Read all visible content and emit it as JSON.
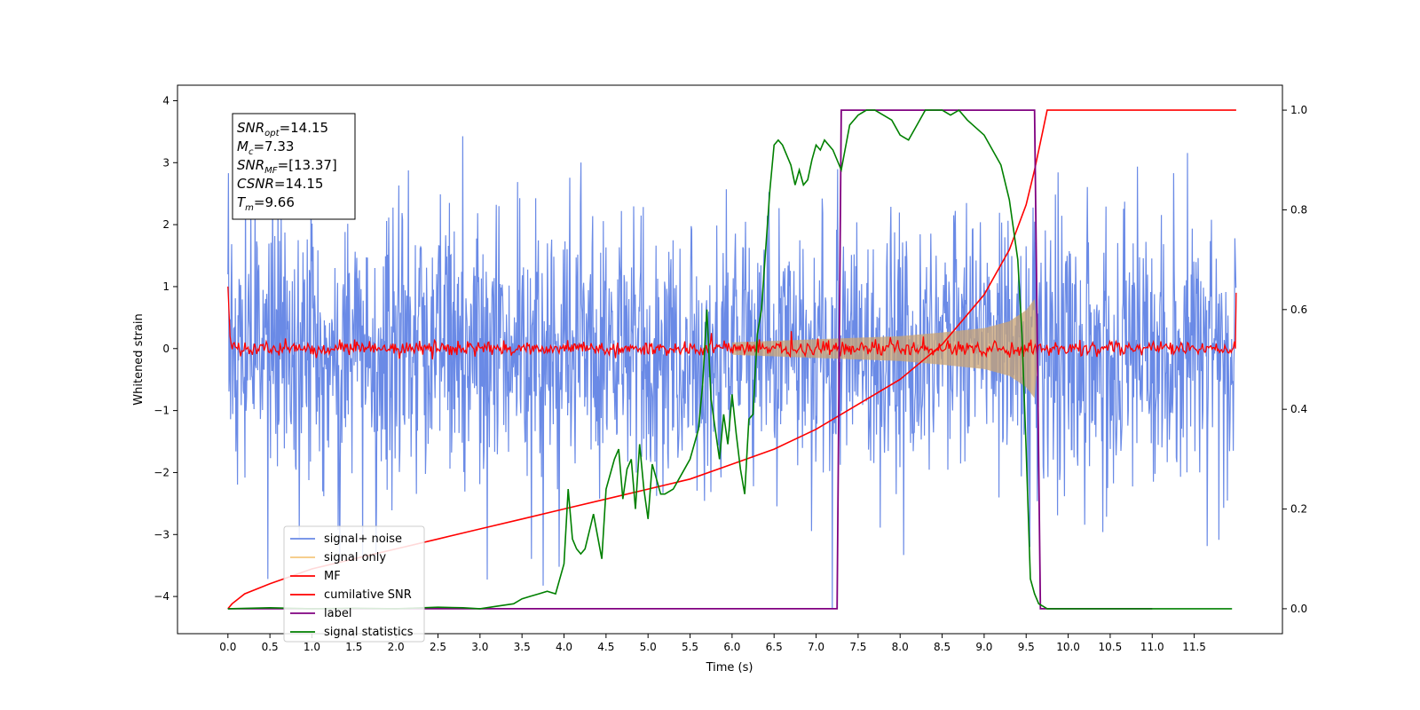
{
  "chart_data": {
    "type": "line",
    "title": "",
    "xlabel": "Time (s)",
    "ylabel": "Whitened strain",
    "y2label": "",
    "xlim": [
      -0.6,
      12.55
    ],
    "ylim": [
      -4.6,
      4.25
    ],
    "y2lim": [
      -0.05,
      1.05
    ],
    "xticks": [
      0.0,
      0.5,
      1.0,
      1.5,
      2.0,
      2.5,
      3.0,
      3.5,
      4.0,
      4.5,
      5.0,
      5.5,
      6.0,
      6.5,
      7.0,
      7.5,
      8.0,
      8.5,
      9.0,
      9.5,
      10.0,
      10.5,
      11.0,
      11.5
    ],
    "yticks": [
      -4,
      -3,
      -2,
      -1,
      0,
      1,
      2,
      3,
      4
    ],
    "y2ticks": [
      0.0,
      0.2,
      0.4,
      0.6,
      0.8,
      1.0
    ],
    "grid": false,
    "legend_position": "lower-left",
    "annotation": [
      {
        "base": "SNR",
        "sub": "opt",
        "rest": "=14.15"
      },
      {
        "base": "M",
        "sub": "c",
        "rest": "=7.33"
      },
      {
        "base": "SNR",
        "sub": "MF",
        "rest": "=[13.37]"
      },
      {
        "base": "CSNR",
        "sub": "",
        "rest": "=14.15"
      },
      {
        "base": "T",
        "sub": "m",
        "rest": "=9.66"
      }
    ],
    "series": [
      {
        "name": "signal+ noise",
        "color": "#6a8ae6",
        "axis": "left",
        "kind": "noise",
        "amplitude": 1.1,
        "t_end": 12.0
      },
      {
        "name": "signal only",
        "color": "#f5c77e",
        "axis": "left",
        "kind": "chirp",
        "envelope": {
          "t": [
            0.0,
            6.0,
            7.0,
            8.0,
            8.5,
            9.0,
            9.3,
            9.5,
            9.6,
            9.65
          ],
          "amp": [
            0.0,
            0.1,
            0.15,
            0.2,
            0.26,
            0.33,
            0.44,
            0.62,
            0.8,
            0.0
          ]
        }
      },
      {
        "name": "MF",
        "color": "#ff0000",
        "axis": "left",
        "kind": "mf",
        "t_end": 12.0,
        "spikes": [
          {
            "t": 0.0,
            "y": 1.0
          },
          {
            "t": 5.75,
            "y": 0.25
          },
          {
            "t": 6.7,
            "y": 0.28
          },
          {
            "t": 12.0,
            "y": 0.9
          }
        ]
      },
      {
        "name": "cumilative SNR",
        "color": "#ff0000",
        "axis": "right",
        "x": [
          0.0,
          0.05,
          0.2,
          0.5,
          1.0,
          1.5,
          2.0,
          2.5,
          3.0,
          3.5,
          4.0,
          4.5,
          5.0,
          5.5,
          6.0,
          6.5,
          7.0,
          7.5,
          8.0,
          8.5,
          9.0,
          9.3,
          9.5,
          9.6,
          9.7,
          9.75,
          12.0
        ],
        "y": [
          0.0,
          0.01,
          0.03,
          0.05,
          0.08,
          0.1,
          0.12,
          0.14,
          0.16,
          0.18,
          0.2,
          0.22,
          0.24,
          0.26,
          0.29,
          0.32,
          0.36,
          0.41,
          0.46,
          0.53,
          0.63,
          0.72,
          0.81,
          0.88,
          0.96,
          1.0,
          1.0
        ]
      },
      {
        "name": "label",
        "color": "#800080",
        "axis": "right",
        "x": [
          0.0,
          7.25,
          7.3,
          9.6,
          9.67,
          11.0
        ],
        "y": [
          0.0,
          0.0,
          1.0,
          1.0,
          0.0,
          0.0
        ]
      },
      {
        "name": "signal statistics",
        "color": "#008000",
        "axis": "right",
        "x": [
          0.0,
          0.5,
          1.0,
          1.5,
          2.0,
          2.5,
          2.8,
          3.0,
          3.2,
          3.4,
          3.5,
          3.6,
          3.7,
          3.8,
          3.9,
          4.0,
          4.05,
          4.1,
          4.15,
          4.2,
          4.25,
          4.35,
          4.45,
          4.5,
          4.6,
          4.65,
          4.7,
          4.75,
          4.8,
          4.85,
          4.9,
          4.95,
          5.0,
          5.05,
          5.1,
          5.15,
          5.2,
          5.3,
          5.4,
          5.5,
          5.55,
          5.6,
          5.65,
          5.7,
          5.75,
          5.8,
          5.85,
          5.9,
          5.95,
          6.0,
          6.05,
          6.1,
          6.15,
          6.2,
          6.25,
          6.3,
          6.35,
          6.4,
          6.45,
          6.5,
          6.55,
          6.6,
          6.65,
          6.7,
          6.75,
          6.8,
          6.85,
          6.9,
          6.95,
          7.0,
          7.05,
          7.1,
          7.2,
          7.3,
          7.4,
          7.5,
          7.6,
          7.7,
          7.8,
          7.9,
          8.0,
          8.1,
          8.2,
          8.3,
          8.4,
          8.5,
          8.6,
          8.7,
          8.8,
          9.0,
          9.2,
          9.3,
          9.4,
          9.45,
          9.5,
          9.55,
          9.6,
          9.65,
          9.7,
          9.75,
          9.8,
          9.9,
          10.0,
          10.5,
          11.0,
          11.5,
          11.95
        ],
        "y": [
          0.0,
          0.002,
          0.0,
          0.001,
          0.0,
          0.003,
          0.002,
          0.0,
          0.005,
          0.01,
          0.02,
          0.025,
          0.03,
          0.035,
          0.03,
          0.09,
          0.24,
          0.14,
          0.12,
          0.11,
          0.12,
          0.19,
          0.1,
          0.24,
          0.3,
          0.32,
          0.22,
          0.28,
          0.3,
          0.2,
          0.33,
          0.24,
          0.18,
          0.29,
          0.26,
          0.23,
          0.23,
          0.24,
          0.27,
          0.3,
          0.33,
          0.36,
          0.45,
          0.6,
          0.42,
          0.36,
          0.3,
          0.39,
          0.33,
          0.43,
          0.35,
          0.28,
          0.23,
          0.38,
          0.39,
          0.55,
          0.6,
          0.72,
          0.84,
          0.93,
          0.94,
          0.93,
          0.91,
          0.89,
          0.85,
          0.88,
          0.85,
          0.86,
          0.9,
          0.93,
          0.92,
          0.94,
          0.92,
          0.88,
          0.97,
          0.99,
          1.0,
          1.0,
          0.99,
          0.98,
          0.95,
          0.94,
          0.97,
          1.0,
          1.0,
          1.0,
          0.99,
          1.0,
          0.98,
          0.95,
          0.89,
          0.82,
          0.7,
          0.55,
          0.32,
          0.06,
          0.03,
          0.01,
          0.005,
          0.0,
          0.0,
          0.0,
          0.0,
          0.0,
          0.0,
          0.0,
          0.0
        ]
      }
    ]
  }
}
